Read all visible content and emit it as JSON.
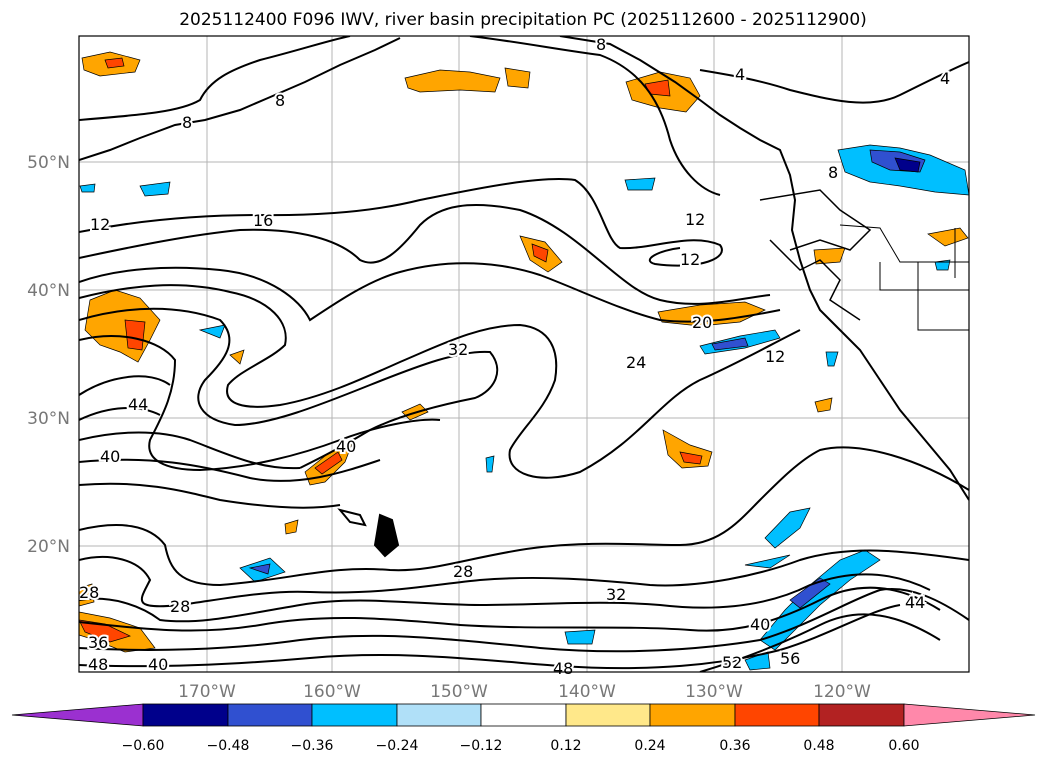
{
  "title": "2025112400 F096 IWV, river basin precipitation PC (2025112600 - 2025112900)",
  "lat_labels": [
    "50°N",
    "40°N",
    "30°N",
    "20°N"
  ],
  "lon_labels": [
    "170°W",
    "160°W",
    "150°W",
    "140°W",
    "130°W",
    "120°W"
  ],
  "contour_labels": [
    "4",
    "4",
    "8",
    "8",
    "8",
    "8",
    "12",
    "12",
    "12",
    "12",
    "16",
    "20",
    "24",
    "28",
    "28",
    "28",
    "32",
    "32",
    "36",
    "40",
    "40",
    "40",
    "40",
    "44",
    "44",
    "48",
    "48",
    "52",
    "56"
  ],
  "colorbar": {
    "ticks": [
      "−0.60",
      "−0.48",
      "−0.36",
      "−0.24",
      "−0.12",
      "0.12",
      "0.24",
      "0.36",
      "0.48",
      "0.60"
    ],
    "colors": [
      "#9b30d0",
      "#00008b",
      "#3050d0",
      "#00bfff",
      "#b0e0f8",
      "#ffffff",
      "#ffe88a",
      "#ffa500",
      "#ff4500",
      "#b22222",
      "#ff88aa"
    ]
  }
}
